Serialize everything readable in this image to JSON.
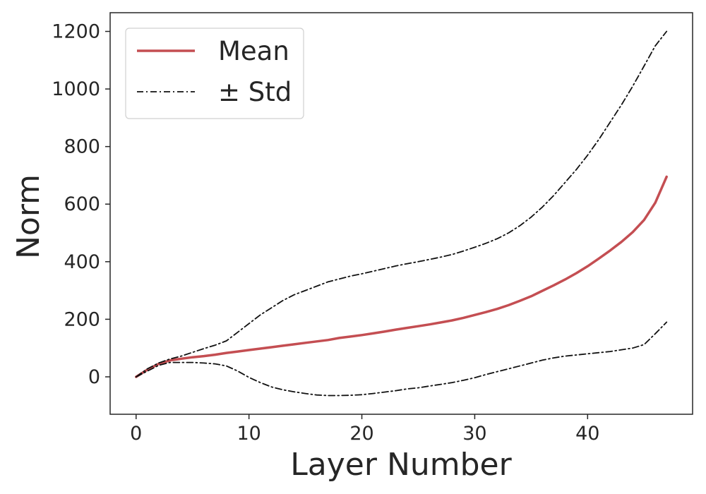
{
  "chart_data": {
    "type": "line",
    "title": "",
    "xlabel": "Layer Number",
    "ylabel": "Norm",
    "xlim": [
      -2.3,
      49.3
    ],
    "ylim": [
      -130,
      1265
    ],
    "xticks": [
      0,
      10,
      20,
      30,
      40
    ],
    "yticks": [
      0,
      200,
      400,
      600,
      800,
      1000,
      1200
    ],
    "grid": false,
    "legend_position": "top-left",
    "x": [
      0,
      1,
      2,
      3,
      4,
      5,
      6,
      7,
      8,
      9,
      10,
      11,
      12,
      13,
      14,
      15,
      16,
      17,
      18,
      19,
      20,
      21,
      22,
      23,
      24,
      25,
      26,
      27,
      28,
      29,
      30,
      31,
      32,
      33,
      34,
      35,
      36,
      37,
      38,
      39,
      40,
      41,
      42,
      43,
      44,
      45,
      46,
      47
    ],
    "series": [
      {
        "name": "Mean",
        "style": "solid",
        "color": "#c44e52",
        "values": [
          0,
          25,
          45,
          57,
          63,
          68,
          72,
          77,
          83,
          88,
          93,
          98,
          103,
          108,
          113,
          118,
          123,
          128,
          135,
          140,
          145,
          151,
          157,
          164,
          170,
          176,
          182,
          189,
          196,
          205,
          215,
          225,
          236,
          249,
          264,
          280,
          299,
          318,
          338,
          360,
          384,
          411,
          439,
          469,
          503,
          545,
          605,
          695
        ]
      },
      {
        "name": "± Std",
        "style": "dashdot",
        "color": "#111111",
        "values": [
          0,
          28,
          48,
          62,
          72,
          85,
          98,
          110,
          125,
          155,
          185,
          215,
          240,
          265,
          285,
          300,
          315,
          330,
          340,
          350,
          358,
          367,
          376,
          385,
          393,
          400,
          408,
          416,
          425,
          437,
          450,
          464,
          480,
          500,
          525,
          555,
          590,
          630,
          675,
          720,
          770,
          825,
          885,
          945,
          1010,
          1080,
          1150,
          1200
        ]
      },
      {
        "name": "± Std (lower)",
        "style": "dashdot",
        "color": "#111111",
        "legend": false,
        "values": [
          0,
          20,
          40,
          50,
          50,
          50,
          48,
          45,
          38,
          20,
          -2,
          -20,
          -35,
          -45,
          -52,
          -58,
          -63,
          -65,
          -65,
          -64,
          -62,
          -58,
          -53,
          -48,
          -42,
          -38,
          -32,
          -26,
          -20,
          -12,
          -3,
          8,
          18,
          28,
          38,
          48,
          58,
          66,
          72,
          76,
          80,
          84,
          88,
          94,
          100,
          112,
          150,
          190
        ]
      }
    ]
  }
}
